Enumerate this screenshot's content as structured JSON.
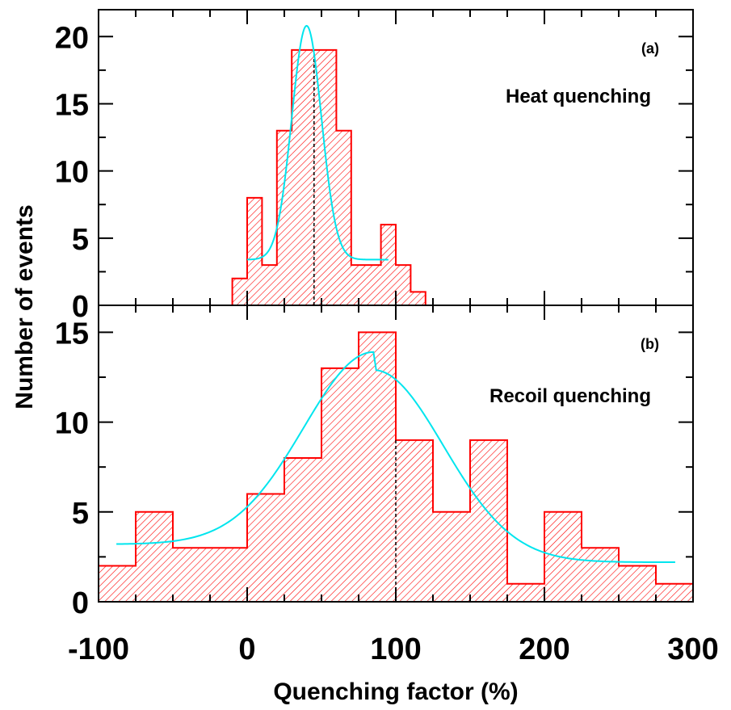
{
  "chart_data": [
    {
      "panel": "(a)",
      "type": "bar",
      "subtype": "histogram",
      "annotation": "Heat quenching",
      "bin_width": 10,
      "bins": [
        {
          "x0": -10,
          "x1": 0,
          "count": 2
        },
        {
          "x0": 0,
          "x1": 10,
          "count": 8
        },
        {
          "x0": 10,
          "x1": 20,
          "count": 3
        },
        {
          "x0": 20,
          "x1": 30,
          "count": 13
        },
        {
          "x0": 30,
          "x1": 40,
          "count": 19
        },
        {
          "x0": 40,
          "x1": 50,
          "count": 19
        },
        {
          "x0": 50,
          "x1": 60,
          "count": 19
        },
        {
          "x0": 60,
          "x1": 70,
          "count": 13
        },
        {
          "x0": 70,
          "x1": 80,
          "count": 3
        },
        {
          "x0": 80,
          "x1": 90,
          "count": 3
        },
        {
          "x0": 90,
          "x1": 100,
          "count": 6
        },
        {
          "x0": 100,
          "x1": 110,
          "count": 3
        },
        {
          "x0": 110,
          "x1": 120,
          "count": 1
        }
      ],
      "fit": {
        "type": "gaussian",
        "amplitude": 17.4,
        "mean": 40,
        "sigma": 10,
        "offset": 3.4,
        "x_range": [
          0,
          95
        ]
      },
      "median_line": 45,
      "xlim": [
        -100,
        300
      ],
      "ylim": [
        0,
        22
      ],
      "yticks": [
        0,
        5,
        10,
        15,
        20
      ],
      "bar_color": "#ff0000",
      "fit_color": "#00e5ee"
    },
    {
      "panel": "(b)",
      "type": "bar",
      "subtype": "histogram",
      "annotation": "Recoil quenching",
      "bin_width": 25,
      "bins": [
        {
          "x0": -100,
          "x1": -75,
          "count": 2
        },
        {
          "x0": -75,
          "x1": -50,
          "count": 5
        },
        {
          "x0": -50,
          "x1": -25,
          "count": 3
        },
        {
          "x0": -25,
          "x1": 0,
          "count": 3
        },
        {
          "x0": 0,
          "x1": 25,
          "count": 6
        },
        {
          "x0": 25,
          "x1": 50,
          "count": 8
        },
        {
          "x0": 50,
          "x1": 75,
          "count": 13
        },
        {
          "x0": 75,
          "x1": 100,
          "count": 15
        },
        {
          "x0": 100,
          "x1": 125,
          "count": 9
        },
        {
          "x0": 125,
          "x1": 150,
          "count": 5
        },
        {
          "x0": 150,
          "x1": 175,
          "count": 9
        },
        {
          "x0": 175,
          "x1": 200,
          "count": 1
        },
        {
          "x0": 200,
          "x1": 225,
          "count": 5
        },
        {
          "x0": 225,
          "x1": 250,
          "count": 3
        },
        {
          "x0": 250,
          "x1": 275,
          "count": 2
        },
        {
          "x0": 275,
          "x1": 300,
          "count": 1
        }
      ],
      "fit": {
        "type": "gaussian",
        "amplitude": 10.7,
        "mean": 85,
        "sigma": 47,
        "offset_left": 3.2,
        "offset_right": 2.2,
        "x_range": [
          -88,
          288
        ]
      },
      "median_line": 100,
      "xlim": [
        -100,
        300
      ],
      "ylim": [
        0,
        16.5
      ],
      "yticks": [
        0,
        5,
        10,
        15
      ],
      "bar_color": "#ff0000",
      "fit_color": "#00e5ee"
    }
  ],
  "shared_axes": {
    "xlabel": "Quenching factor (%)",
    "ylabel": "Number of events",
    "xticks": [
      -100,
      0,
      100,
      200,
      300
    ],
    "xtick_labels": [
      "-100",
      "0",
      "100",
      "200",
      "300"
    ]
  }
}
